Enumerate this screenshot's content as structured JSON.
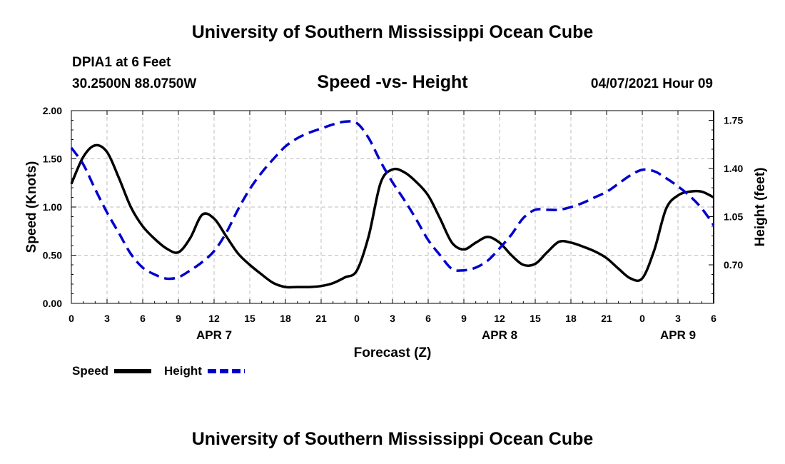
{
  "header": {
    "title": "University of Southern Mississippi Ocean Cube",
    "station": "DPIA1 at 6 Feet",
    "coords": "30.2500N  88.0750W",
    "subtitle": "Speed -vs- Height",
    "datetime": "04/07/2021 Hour 09"
  },
  "footer": {
    "title": "University of Southern Mississippi Ocean Cube"
  },
  "chart_data": {
    "type": "line",
    "xlabel": "Forecast (Z)",
    "x_range": [
      0,
      54
    ],
    "x_ticks": [
      {
        "x": 0,
        "label": "0"
      },
      {
        "x": 3,
        "label": "3"
      },
      {
        "x": 6,
        "label": "6"
      },
      {
        "x": 9,
        "label": "9"
      },
      {
        "x": 12,
        "label": "12"
      },
      {
        "x": 15,
        "label": "15"
      },
      {
        "x": 18,
        "label": "18"
      },
      {
        "x": 21,
        "label": "21"
      },
      {
        "x": 24,
        "label": "0"
      },
      {
        "x": 27,
        "label": "3"
      },
      {
        "x": 30,
        "label": "6"
      },
      {
        "x": 33,
        "label": "9"
      },
      {
        "x": 36,
        "label": "12"
      },
      {
        "x": 39,
        "label": "15"
      },
      {
        "x": 42,
        "label": "18"
      },
      {
        "x": 45,
        "label": "21"
      },
      {
        "x": 48,
        "label": "0"
      },
      {
        "x": 51,
        "label": "3"
      },
      {
        "x": 54,
        "label": "6"
      }
    ],
    "date_labels": [
      {
        "x": 12,
        "label": "APR 7"
      },
      {
        "x": 36,
        "label": "APR 8"
      },
      {
        "x": 51,
        "label": "APR 9"
      }
    ],
    "y_left": {
      "label": "Speed (Knots)",
      "range": [
        0,
        2
      ],
      "ticks": [
        0,
        0.5,
        1.0,
        1.5,
        2.0
      ],
      "tick_labels": [
        "0.00",
        "0.50",
        "1.00",
        "1.50",
        "2.00"
      ]
    },
    "y_right": {
      "label": "Height (feet)",
      "range": [
        0.42,
        1.82
      ],
      "ticks": [
        0.7,
        1.05,
        1.4,
        1.75
      ],
      "tick_labels": [
        "0.70",
        "1.05",
        "1.40",
        "1.75"
      ]
    },
    "grid": true,
    "series": [
      {
        "name": "Speed",
        "axis": "left",
        "style": "solid",
        "color": "#000000",
        "x": [
          0,
          1,
          2,
          3,
          4,
          5,
          6,
          7,
          8,
          9,
          10,
          11,
          12,
          13,
          14,
          15,
          16,
          17,
          18,
          19,
          20,
          21,
          22,
          23,
          24,
          25,
          26,
          27,
          28,
          29,
          30,
          31,
          32,
          33,
          34,
          35,
          36,
          37,
          38,
          39,
          40,
          41,
          42,
          43,
          44,
          45,
          46,
          47,
          48,
          49,
          50,
          51,
          52,
          53,
          54
        ],
        "values": [
          1.24,
          1.52,
          1.64,
          1.57,
          1.3,
          1.0,
          0.8,
          0.67,
          0.57,
          0.53,
          0.68,
          0.92,
          0.88,
          0.7,
          0.52,
          0.4,
          0.3,
          0.21,
          0.17,
          0.17,
          0.17,
          0.18,
          0.21,
          0.27,
          0.34,
          0.7,
          1.25,
          1.39,
          1.36,
          1.26,
          1.12,
          0.88,
          0.63,
          0.56,
          0.63,
          0.69,
          0.63,
          0.5,
          0.4,
          0.41,
          0.53,
          0.64,
          0.63,
          0.59,
          0.54,
          0.47,
          0.36,
          0.26,
          0.26,
          0.55,
          0.98,
          1.12,
          1.16,
          1.16,
          1.1
        ]
      },
      {
        "name": "Height",
        "axis": "right",
        "style": "dashed",
        "color": "#0000CC",
        "x": [
          0,
          1,
          2,
          3,
          4,
          5,
          6,
          7,
          8,
          9,
          10,
          11,
          12,
          13,
          14,
          15,
          16,
          17,
          18,
          19,
          20,
          21,
          22,
          23,
          24,
          25,
          26,
          27,
          28,
          29,
          30,
          31,
          32,
          33,
          34,
          35,
          36,
          37,
          38,
          39,
          40,
          41,
          42,
          43,
          44,
          45,
          46,
          47,
          48,
          49,
          50,
          51,
          52,
          53,
          54
        ],
        "values": [
          1.55,
          1.43,
          1.25,
          1.08,
          0.93,
          0.78,
          0.68,
          0.63,
          0.6,
          0.61,
          0.66,
          0.72,
          0.8,
          0.93,
          1.1,
          1.25,
          1.37,
          1.47,
          1.56,
          1.62,
          1.66,
          1.69,
          1.72,
          1.74,
          1.73,
          1.62,
          1.45,
          1.3,
          1.17,
          1.03,
          0.88,
          0.77,
          0.67,
          0.66,
          0.68,
          0.73,
          0.82,
          0.92,
          1.04,
          1.1,
          1.1,
          1.1,
          1.12,
          1.15,
          1.19,
          1.23,
          1.29,
          1.35,
          1.39,
          1.38,
          1.33,
          1.27,
          1.2,
          1.11,
          0.99
        ]
      }
    ],
    "legend": [
      {
        "label": "Speed",
        "style": "solid",
        "color": "#000000"
      },
      {
        "label": "Height",
        "style": "dashed",
        "color": "#0000CC"
      }
    ],
    "legend_position": "bottom-left"
  }
}
